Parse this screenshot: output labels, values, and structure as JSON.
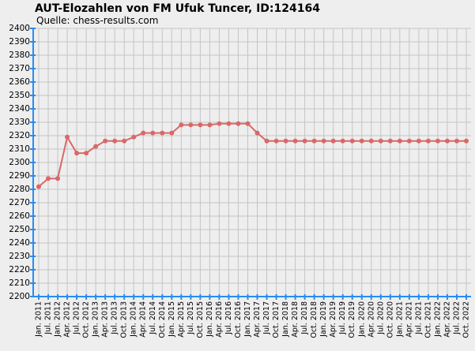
{
  "chart_data": {
    "type": "line",
    "title": "AUT-Elozahlen von FM Ufuk Tuncer, ID:124164",
    "subtitle": "Quelle: chess-results.com",
    "categories": [
      "Jan. 2011",
      "Jul. 2011",
      "Jan. 2012",
      "Apr. 2012",
      "Jul. 2012",
      "Oct. 2012",
      "Jan. 2013",
      "Apr. 2013",
      "Jul. 2013",
      "Oct. 2013",
      "Jan. 2014",
      "Apr. 2014",
      "Jul. 2014",
      "Oct. 2014",
      "Jan. 2015",
      "Apr. 2015",
      "Jul. 2015",
      "Oct. 2015",
      "Jan. 2016",
      "Apr. 2016",
      "Jul. 2016",
      "Oct. 2016",
      "Jan. 2017",
      "Apr. 2017",
      "Jul. 2017",
      "Oct. 2017",
      "Jan. 2018",
      "Apr. 2018",
      "Jul. 2018",
      "Oct. 2018",
      "Jan. 2019",
      "Apr. 2019",
      "Jul. 2019",
      "Oct. 2019",
      "Jan. 2020",
      "Apr. 2020",
      "Jul. 2020",
      "Oct. 2020",
      "Jan. 2021",
      "Apr. 2021",
      "Jul. 2021",
      "Oct. 2021",
      "Jan. 2022",
      "Apr. 2022",
      "Jul. 2022",
      "Oct. 2022"
    ],
    "values": [
      2282,
      2288,
      2288,
      2319,
      2307,
      2307,
      2312,
      2316,
      2316,
      2316,
      2319,
      2322,
      2322,
      2322,
      2322,
      2328,
      2328,
      2328,
      2328,
      2329,
      2329,
      2329,
      2329,
      2322,
      2316,
      2316,
      2316,
      2316,
      2316,
      2316,
      2316,
      2316,
      2316,
      2316,
      2316,
      2316,
      2316,
      2316,
      2316,
      2316,
      2316,
      2316,
      2316,
      2316,
      2316,
      2316
    ],
    "color": "#d96868",
    "ylim": [
      2200,
      2400
    ],
    "yticks": [
      2200,
      2210,
      2220,
      2230,
      2240,
      2250,
      2260,
      2270,
      2280,
      2290,
      2300,
      2310,
      2320,
      2330,
      2340,
      2350,
      2360,
      2370,
      2380,
      2390,
      2400
    ],
    "grid": true
  }
}
